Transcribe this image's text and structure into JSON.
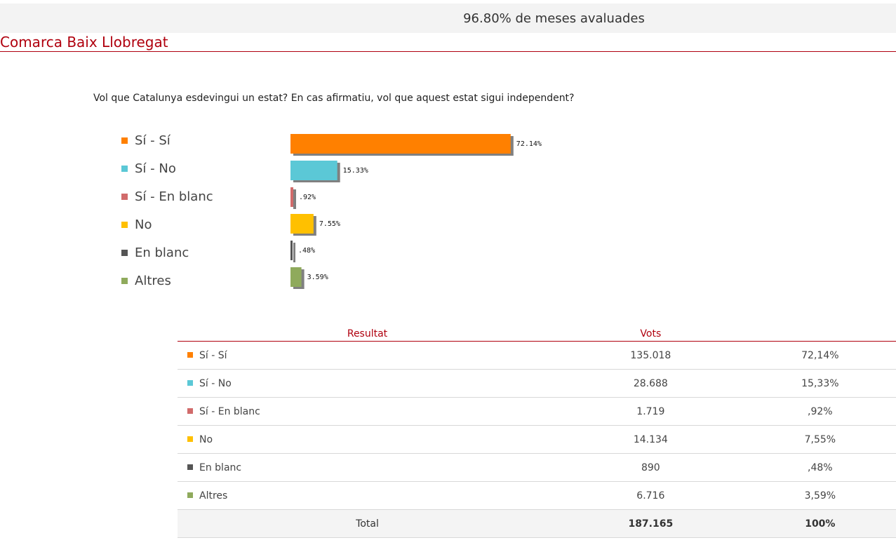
{
  "header": {
    "coverage_text": "96.80% de meses avaluades"
  },
  "region": {
    "title": "Comarca Baix Llobregat"
  },
  "question": "Vol que Catalunya esdevingui un estat? En cas afirmatiu, vol que aquest estat sigui independent?",
  "chart_data": {
    "type": "bar",
    "orientation": "horizontal",
    "title": "",
    "xlabel": "",
    "ylabel": "",
    "xlim": [
      0,
      100
    ],
    "grid": false,
    "legend": "left",
    "categories": [
      "Sí - Sí",
      "Sí - No",
      "Sí - En blanc",
      "No",
      "En blanc",
      "Altres"
    ],
    "values": [
      72.14,
      15.33,
      0.92,
      7.55,
      0.48,
      3.59
    ],
    "data_labels": [
      "72.14%",
      "15.33%",
      ".92%",
      "7.55%",
      ".48%",
      "3.59%"
    ],
    "colors": [
      "#ff8000",
      "#5bc8d6",
      "#d16b6b",
      "#ffc000",
      "#555555",
      "#8faa5c"
    ]
  },
  "table": {
    "headers": {
      "result": "Resultat",
      "votes": "Vots"
    },
    "rows": [
      {
        "name": "Sí - Sí",
        "votes": "135.018",
        "pct": "72,14%",
        "color": "#ff8000"
      },
      {
        "name": "Sí - No",
        "votes": "28.688",
        "pct": "15,33%",
        "color": "#5bc8d6"
      },
      {
        "name": "Sí - En blanc",
        "votes": "1.719",
        "pct": ",92%",
        "color": "#d16b6b"
      },
      {
        "name": "No",
        "votes": "14.134",
        "pct": "7,55%",
        "color": "#ffc000"
      },
      {
        "name": "En blanc",
        "votes": "890",
        "pct": ",48%",
        "color": "#555555"
      },
      {
        "name": "Altres",
        "votes": "6.716",
        "pct": "3,59%",
        "color": "#8faa5c"
      }
    ],
    "total": {
      "label": "Total",
      "votes": "187.165",
      "pct": "100%"
    }
  }
}
